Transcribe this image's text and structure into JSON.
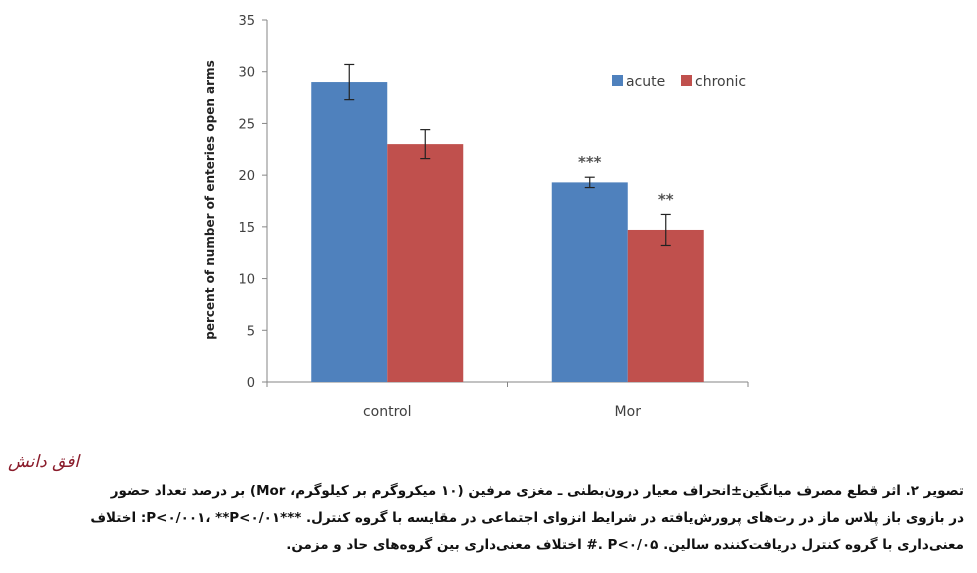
{
  "colors": {
    "acute": "#4f81bd",
    "chronic": "#c0504d",
    "axis": "#868686",
    "text": "#404040"
  },
  "chart_data": {
    "type": "bar",
    "title": "",
    "xlabel": "",
    "ylabel": "percent of number of enteries open arms",
    "ylim": [
      0,
      35
    ],
    "yticks": [
      "0",
      "5",
      "10",
      "15",
      "20",
      "25",
      "30",
      "35"
    ],
    "grid": false,
    "legend_position": "top-right",
    "categories": [
      "control",
      "Mor"
    ],
    "series": [
      {
        "name": "acute",
        "values": [
          29.0,
          19.3
        ],
        "errors": [
          1.7,
          0.5
        ],
        "color": "#4f81bd"
      },
      {
        "name": "chronic",
        "values": [
          23.0,
          14.7
        ],
        "errors": [
          1.4,
          1.5
        ],
        "color": "#c0504d"
      }
    ],
    "annotations": [
      {
        "category": "Mor",
        "series": "acute",
        "text": "***"
      },
      {
        "category": "Mor",
        "series": "chronic",
        "text": "**"
      }
    ]
  },
  "logo_text": "افق دانش",
  "caption": {
    "line1": "تصویر ۲. اثر قطع مصرف میانگین±انحراف معیار درون‌بطنی ـ مغزی مرفین (۱۰ میکروگرم بر کیلوگرم، Mor) بر درصد تعداد حضور",
    "line2": "در بازوی باز پلاس ماز در رت‌های پرورش‌یافته در شرایط انزوای اجتماعی در مقایسه با گروه کنترل. ***P<۰/۰۰۱، **P<۰/۰۱: اختلاف",
    "line3": "معنی‌داری با گروه کنترل دریافت‌کننده سالین. P<۰/۰۵ .# اختلاف معنی‌داری بین گروه‌های حاد و مزمن."
  }
}
